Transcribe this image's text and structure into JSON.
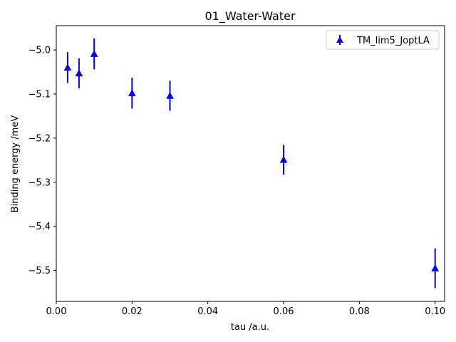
{
  "chart_data": {
    "type": "scatter",
    "title": "01_Water-Water",
    "xlabel": "tau /a.u.",
    "ylabel": "Binding energy /meV",
    "xlim": [
      0.0,
      0.1025
    ],
    "ylim": [
      -5.57,
      -4.945
    ],
    "x_ticks": [
      0.0,
      0.02,
      0.04,
      0.06,
      0.08,
      0.1
    ],
    "x_tick_labels": [
      "0.00",
      "0.02",
      "0.04",
      "0.06",
      "0.08",
      "0.10"
    ],
    "y_ticks": [
      -5.0,
      -5.1,
      -5.2,
      -5.3,
      -5.4,
      -5.5
    ],
    "y_tick_labels": [
      "−5.0",
      "−5.1",
      "−5.2",
      "−5.3",
      "−5.4",
      "−5.5"
    ],
    "grid": false,
    "legend_position": "top-right",
    "series": [
      {
        "name": "TM_lim5_JoptLA",
        "color": "#0000ff",
        "marker": "triangle-up",
        "x": [
          0.003,
          0.006,
          0.01,
          0.02,
          0.03,
          0.06,
          0.1
        ],
        "y": [
          -5.04,
          -5.053,
          -5.009,
          -5.098,
          -5.104,
          -5.249,
          -5.495
        ],
        "yerr": [
          0.035,
          0.034,
          0.035,
          0.035,
          0.034,
          0.034,
          0.045
        ]
      }
    ]
  }
}
